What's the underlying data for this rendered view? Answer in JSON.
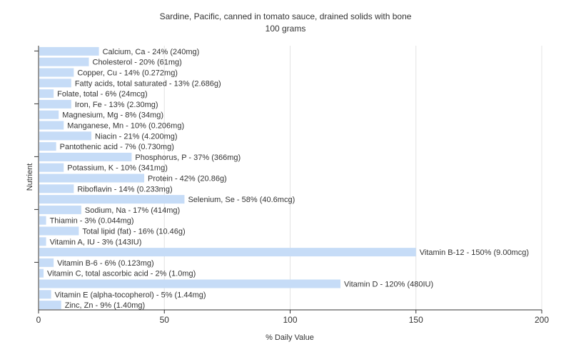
{
  "chart_data": {
    "type": "bar",
    "orientation": "horizontal",
    "title": "Sardine, Pacific, canned in tomato sauce, drained solids with bone",
    "subtitle": "100 grams",
    "xlabel": "% Daily Value",
    "ylabel": "Nutrient",
    "xlim": [
      0,
      200
    ],
    "xticks": [
      0,
      50,
      100,
      150,
      200
    ],
    "grid": true,
    "bar_color": "#c6dcf7",
    "categories": [
      "Calcium, Ca",
      "Cholesterol",
      "Copper, Cu",
      "Fatty acids, total saturated",
      "Folate, total",
      "Iron, Fe",
      "Magnesium, Mg",
      "Manganese, Mn",
      "Niacin",
      "Pantothenic acid",
      "Phosphorus, P",
      "Potassium, K",
      "Protein",
      "Riboflavin",
      "Selenium, Se",
      "Sodium, Na",
      "Thiamin",
      "Total lipid (fat)",
      "Vitamin A, IU",
      "Vitamin B-12",
      "Vitamin B-6",
      "Vitamin C, total ascorbic acid",
      "Vitamin D",
      "Vitamin E (alpha-tocopherol)",
      "Zinc, Zn"
    ],
    "values": [
      24,
      20,
      14,
      13,
      6,
      13,
      8,
      10,
      21,
      7,
      37,
      10,
      42,
      14,
      58,
      17,
      3,
      16,
      3,
      150,
      6,
      2,
      120,
      5,
      9
    ],
    "labels": [
      "Calcium, Ca - 24% (240mg)",
      "Cholesterol - 20% (61mg)",
      "Copper, Cu - 14% (0.272mg)",
      "Fatty acids, total saturated - 13% (2.686g)",
      "Folate, total - 6% (24mcg)",
      "Iron, Fe - 13% (2.30mg)",
      "Magnesium, Mg - 8% (34mg)",
      "Manganese, Mn - 10% (0.206mg)",
      "Niacin - 21% (4.200mg)",
      "Pantothenic acid - 7% (0.730mg)",
      "Phosphorus, P - 37% (366mg)",
      "Potassium, K - 10% (341mg)",
      "Protein - 42% (20.86g)",
      "Riboflavin - 14% (0.233mg)",
      "Selenium, Se - 58% (40.6mcg)",
      "Sodium, Na - 17% (414mg)",
      "Thiamin - 3% (0.044mg)",
      "Total lipid (fat) - 16% (10.46g)",
      "Vitamin A, IU - 3% (143IU)",
      "Vitamin B-12 - 150% (9.00mcg)",
      "Vitamin B-6 - 6% (0.123mg)",
      "Vitamin C, total ascorbic acid - 2% (1.0mg)",
      "Vitamin D - 120% (480IU)",
      "Vitamin E (alpha-tocopherol) - 5% (1.44mg)",
      "Zinc, Zn - 9% (1.40mg)"
    ]
  }
}
